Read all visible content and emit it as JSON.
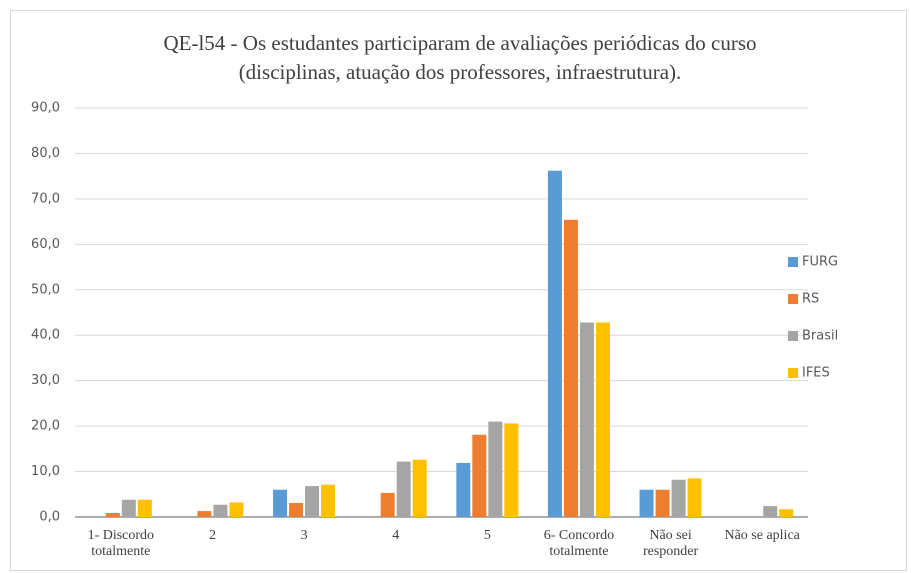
{
  "chart_data": {
    "type": "bar",
    "title": [
      "QE-l54 - Os estudantes participaram de avaliações periódicas do curso",
      "(disciplinas,  atuação dos professores, infraestrutura)."
    ],
    "categories": [
      "1- Discordo totalmente",
      "2",
      "3",
      "4",
      "5",
      "6- Concordo totalmente",
      "Não sei responder",
      "Não se aplica"
    ],
    "series": [
      {
        "name": "FURG",
        "color": "#5b9bd5",
        "values": [
          0,
          0,
          6.0,
          0,
          11.9,
          76.2,
          6.0,
          0
        ]
      },
      {
        "name": "RS",
        "color": "#ed7d31",
        "values": [
          0.9,
          1.3,
          3.1,
          5.3,
          18.1,
          65.4,
          6.0,
          0
        ]
      },
      {
        "name": "Brasil",
        "color": "#a5a5a5",
        "values": [
          3.8,
          2.7,
          6.8,
          12.2,
          21.0,
          42.8,
          8.2,
          2.4
        ]
      },
      {
        "name": "IFES",
        "color": "#ffc000",
        "values": [
          3.8,
          3.2,
          7.1,
          12.6,
          20.6,
          42.8,
          8.5,
          1.7
        ]
      }
    ],
    "ylim": [
      0,
      90
    ],
    "yticks": [
      {
        "value": 0,
        "label": "0,0"
      },
      {
        "value": 10,
        "label": "10,0"
      },
      {
        "value": 20,
        "label": "20,0"
      },
      {
        "value": 30,
        "label": "30,0"
      },
      {
        "value": 40,
        "label": "40,0"
      },
      {
        "value": 50,
        "label": "50,0"
      },
      {
        "value": 60,
        "label": "60,0"
      },
      {
        "value": 70,
        "label": "70,0"
      },
      {
        "value": 80,
        "label": "80,0"
      },
      {
        "value": 90,
        "label": "90,0"
      }
    ],
    "grid": true,
    "legend": "right"
  }
}
